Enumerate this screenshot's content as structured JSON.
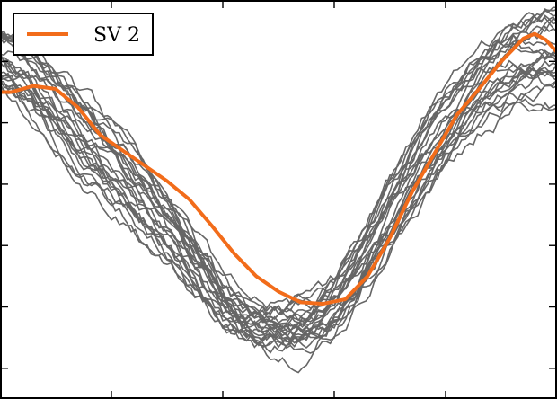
{
  "chart_data": {
    "type": "line",
    "title": "",
    "xlabel": "",
    "ylabel": "",
    "xlim": [
      0,
      100
    ],
    "ylim": [
      -1.6,
      1.0
    ],
    "grid": false,
    "legend": {
      "placement": "top-left",
      "entries": [
        "SV 2"
      ]
    },
    "ensemble": {
      "color": "#666666",
      "count": 25,
      "x": [
        0,
        4,
        8,
        12,
        16,
        20,
        24,
        28,
        32,
        36,
        40,
        44,
        48,
        52,
        56,
        60,
        64,
        68,
        72,
        76,
        80,
        84,
        88,
        92,
        96,
        100
      ],
      "mean": [
        0.6,
        0.5,
        0.35,
        0.2,
        0.05,
        -0.1,
        -0.25,
        -0.42,
        -0.6,
        -0.8,
        -0.98,
        -1.1,
        -1.15,
        -1.15,
        -1.1,
        -1.0,
        -0.8,
        -0.55,
        -0.3,
        -0.05,
        0.15,
        0.32,
        0.45,
        0.55,
        0.6,
        0.62
      ],
      "spread": [
        0.2,
        0.22,
        0.24,
        0.25,
        0.25,
        0.24,
        0.22,
        0.2,
        0.18,
        0.15,
        0.12,
        0.12,
        0.13,
        0.14,
        0.14,
        0.15,
        0.17,
        0.19,
        0.2,
        0.22,
        0.23,
        0.24,
        0.25,
        0.26,
        0.27,
        0.28
      ]
    },
    "series": [
      {
        "name": "SV 2",
        "color": "#f26c1a",
        "x": [
          0,
          2,
          6,
          10,
          14,
          18,
          22,
          26,
          30,
          34,
          38,
          42,
          46,
          50,
          54,
          58,
          62,
          66,
          70,
          74,
          78,
          82,
          86,
          90,
          94,
          96,
          98,
          100
        ],
        "y": [
          0.4,
          0.4,
          0.44,
          0.42,
          0.3,
          0.12,
          0.02,
          -0.08,
          -0.18,
          -0.3,
          -0.47,
          -0.65,
          -0.8,
          -0.9,
          -0.97,
          -0.98,
          -0.95,
          -0.8,
          -0.55,
          -0.25,
          0.0,
          0.25,
          0.42,
          0.6,
          0.75,
          0.78,
          0.74,
          0.66
        ]
      }
    ]
  }
}
